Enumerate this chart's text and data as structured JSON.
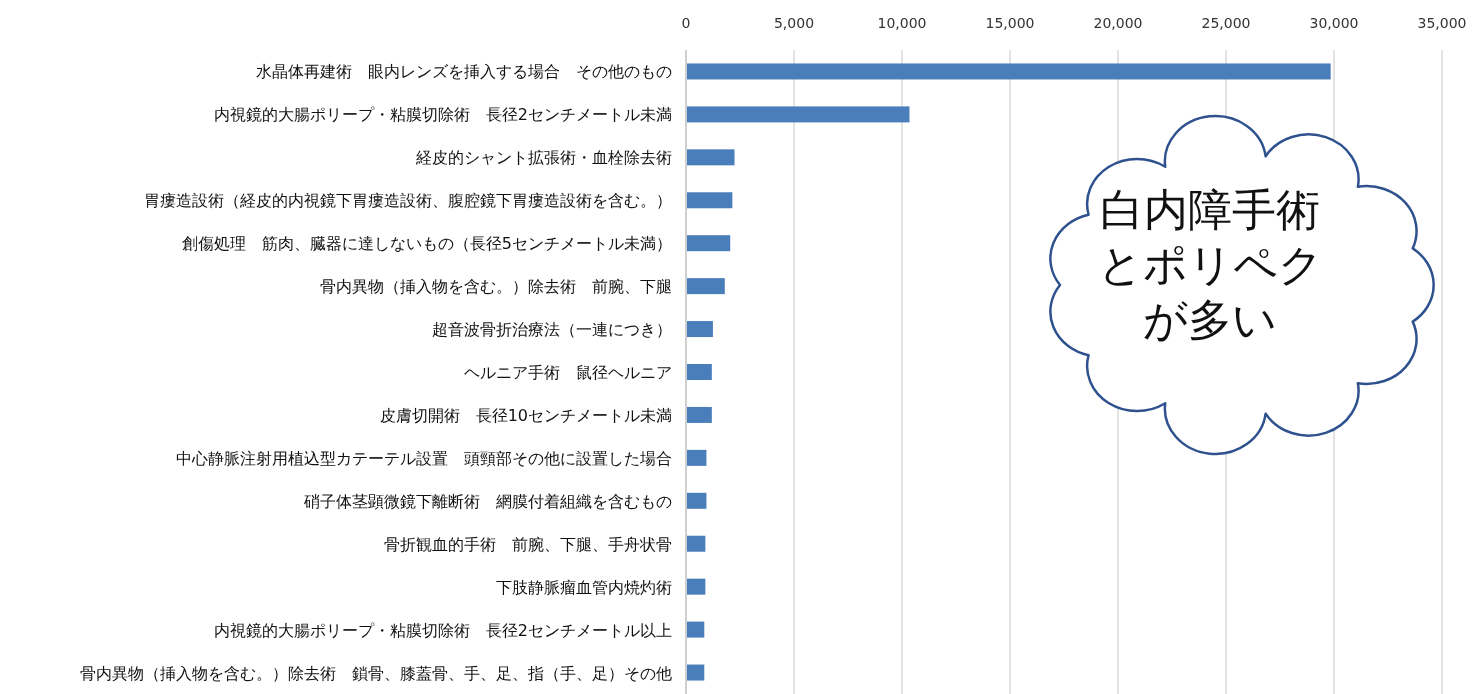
{
  "chart_data": {
    "type": "bar",
    "orientation": "horizontal",
    "categories": [
      "水晶体再建術　眼内レンズを挿入する場合　その他のもの",
      "内視鏡的大腸ポリープ・粘膜切除術　長径2センチメートル未満",
      "経皮的シャント拡張術・血栓除去術",
      "胃瘻造設術（経皮的内視鏡下胃瘻造設術、腹腔鏡下胃瘻造設術を含む。）",
      "創傷処理　筋肉、臓器に達しないもの（長径5センチメートル未満）",
      "骨内異物（挿入物を含む。）除去術　前腕、下腿",
      "超音波骨折治療法（一連につき）",
      "ヘルニア手術　鼠径ヘルニア",
      "皮膚切開術　長径10センチメートル未満",
      "中心静脈注射用植込型カテーテル設置　頭頸部その他に設置した場合",
      "硝子体茎顕微鏡下離断術　網膜付着組織を含むもの",
      "骨折観血的手術　前腕、下腿、手舟状骨",
      "下肢静脈瘤血管内焼灼術",
      "内視鏡的大腸ポリープ・粘膜切除術　長径2センチメートル以上",
      "骨内異物（挿入物を含む。）除去術　鎖骨、膝蓋骨、手、足、指（手、足）その他"
    ],
    "values": [
      29800,
      10300,
      2200,
      2100,
      2000,
      1750,
      1200,
      1150,
      1150,
      900,
      900,
      850,
      850,
      800,
      800
    ],
    "color": "#4a7ebb",
    "xlim": [
      0,
      35000
    ],
    "xticks": [
      {
        "value": 0,
        "label": "0"
      },
      {
        "value": 5000,
        "label": "5,000"
      },
      {
        "value": 10000,
        "label": "10,000"
      },
      {
        "value": 15000,
        "label": "15,000"
      },
      {
        "value": 20000,
        "label": "20,000"
      },
      {
        "value": 25000,
        "label": "25,000"
      },
      {
        "value": 30000,
        "label": "30,000"
      },
      {
        "value": 35000,
        "label": "35,000"
      }
    ],
    "grid": "x",
    "annotations": [
      "白内障手術とポリペクが多い"
    ]
  }
}
